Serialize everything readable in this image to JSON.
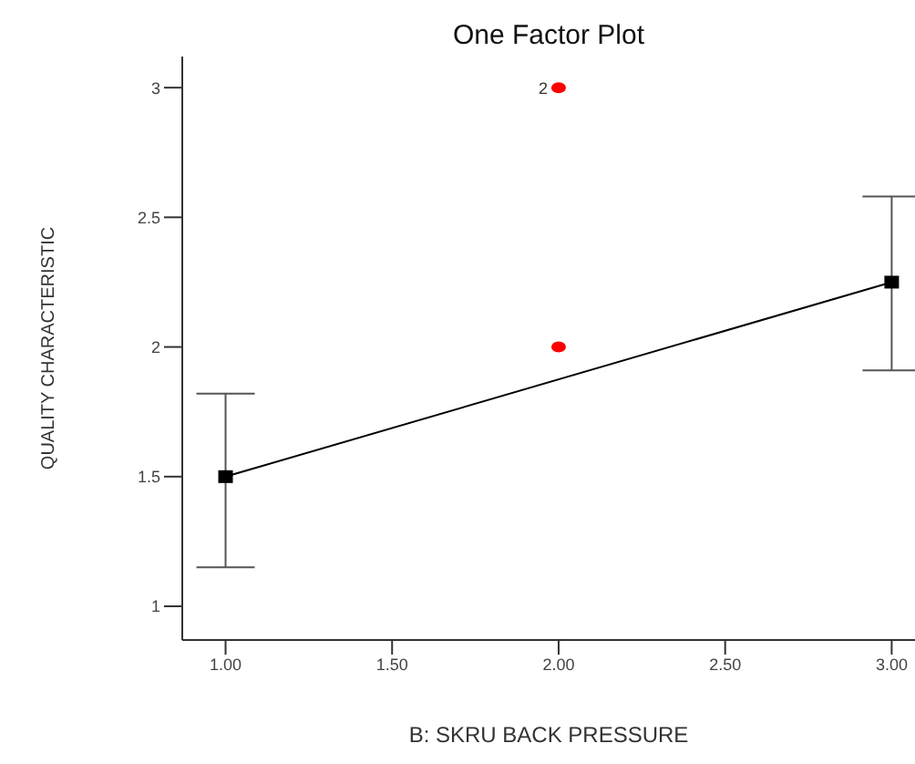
{
  "chart_data": {
    "type": "line",
    "title": "One Factor Plot",
    "xlabel": "B: SKRU BACK PRESSURE",
    "ylabel": "QUALITY CHARACTERISTIC",
    "xlim": [
      0.87,
      3.07
    ],
    "xticks": [
      {
        "value": 1,
        "label": "1.00"
      },
      {
        "value": 1.5,
        "label": "1.50"
      },
      {
        "value": 2,
        "label": "2.00"
      },
      {
        "value": 2.5,
        "label": "2.50"
      },
      {
        "value": 3,
        "label": "3.00"
      }
    ],
    "ylim": [
      0.87,
      3.12
    ],
    "yticks": [
      1,
      1.5,
      2,
      2.5,
      3
    ],
    "grid": false,
    "legend": false,
    "series": [
      {
        "color": "#000000",
        "marker": "square",
        "x": [
          1,
          3
        ],
        "values": [
          1.5,
          2.25
        ],
        "errors": [
          [
            1.15,
            1.82
          ],
          [
            1.91,
            2.58
          ]
        ]
      },
      {
        "type": "scatter",
        "color": "#ff0000",
        "marker": "circle",
        "x": [
          2,
          2
        ],
        "values": [
          3,
          2
        ]
      }
    ],
    "annotations": [
      {
        "text": "2",
        "x": 2,
        "y": 3
      }
    ]
  }
}
